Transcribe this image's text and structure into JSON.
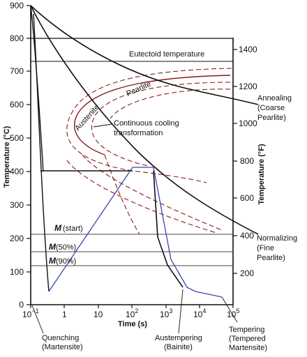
{
  "left_axis": {
    "title": "Temperature (°C)",
    "ticks": [
      "900",
      "800",
      "700",
      "600",
      "500",
      "400",
      "300",
      "200",
      "100",
      "0"
    ]
  },
  "right_axis": {
    "title": "Temperature (°F)",
    "ticks": [
      "1400",
      "1200",
      "1000",
      "800",
      "600",
      "400",
      "200"
    ]
  },
  "x_axis": {
    "title": "Time (s)",
    "ticks": [
      {
        "base": "10",
        "exp": "−1"
      },
      {
        "base": "1",
        "exp": ""
      },
      {
        "base": "10",
        "exp": ""
      },
      {
        "base": "10",
        "exp": "2"
      },
      {
        "base": "10",
        "exp": "3"
      },
      {
        "base": "10",
        "exp": "4"
      },
      {
        "base": "10",
        "exp": "5"
      }
    ]
  },
  "labels": {
    "eutectoid": "Eutectoid temperature",
    "austenite": "Austenite",
    "pearlite": "Pearlite",
    "ccT_line1": "Continuous cooling",
    "ccT_line2": "transformation",
    "annealing_1": "Annealing",
    "annealing_2": "(Coarse",
    "annealing_3": "Pearlite)",
    "normalizing_1": "Normalizing",
    "normalizing_2": "(Fine",
    "normalizing_3": "Pearlite)",
    "quenching_1": "Quenching",
    "quenching_2": "(Martensite)",
    "austempering_1": "Austempering",
    "austempering_2": "(Bainite)",
    "tempering_1": "Tempering",
    "tempering_2": "(Tempered",
    "tempering_3": "Martensite)",
    "m_start_m": "M",
    "m_start_sub": "(start)",
    "m50_m": "M",
    "m50_sub": "(50%)",
    "m90_m": "M",
    "m90_sub": "(90%)"
  },
  "colors": {
    "axis": "#111111",
    "cooling_curves": "#111111",
    "transformation_dashed": "#8a1a1a",
    "tempering_path": "#3a45b5"
  }
}
